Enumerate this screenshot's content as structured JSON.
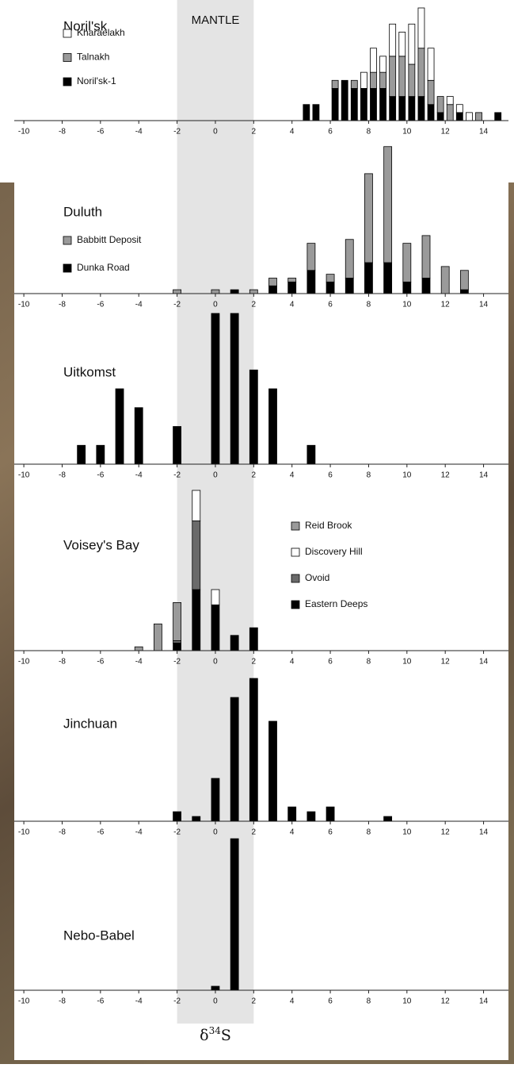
{
  "mantle": {
    "label": "MANTLE",
    "range": [
      -2,
      2
    ]
  },
  "x_axis_label": {
    "symbol": "δ",
    "superscript": "34",
    "element": "S"
  },
  "chart_data": [
    {
      "type": "bar",
      "title": "Noril'sk",
      "x": [
        4.75,
        5.25,
        6.25,
        6.75,
        7.25,
        7.75,
        8.25,
        8.75,
        9.25,
        9.75,
        10.25,
        10.75,
        11.25,
        11.75,
        12.25,
        12.75,
        13.25,
        13.75,
        14.75
      ],
      "series": [
        {
          "name": "Noril'sk-1",
          "color": "#000000",
          "values": [
            2,
            2,
            4,
            5,
            4,
            4,
            4,
            4,
            3,
            3,
            3,
            3,
            2,
            1,
            0,
            1,
            0,
            0,
            1
          ]
        },
        {
          "name": "Talnakh",
          "color": "#9a9a9a",
          "values": [
            0,
            0,
            1,
            0,
            1,
            0,
            2,
            2,
            5,
            5,
            4,
            6,
            3,
            2,
            2,
            0,
            0,
            1,
            0
          ]
        },
        {
          "name": "Kharaelakh",
          "color": "#ffffff",
          "values": [
            0,
            0,
            0,
            0,
            0,
            2,
            3,
            2,
            4,
            3,
            5,
            5,
            4,
            0,
            1,
            1,
            1,
            0,
            0
          ]
        }
      ],
      "xlim": [
        -10.5,
        15.3
      ],
      "xticks": [
        -10,
        -8,
        -6,
        -4,
        -2,
        0,
        2,
        4,
        6,
        8,
        10,
        12,
        14
      ],
      "ylim": [
        0,
        14
      ]
    },
    {
      "type": "bar",
      "title": "Duluth",
      "x": [
        -2,
        0,
        1,
        2,
        3,
        4,
        5,
        6,
        7,
        8,
        9,
        10,
        11,
        12,
        13
      ],
      "series": [
        {
          "name": "Dunka Road",
          "color": "#000000",
          "values": [
            0,
            0,
            1,
            0,
            2,
            3,
            6,
            3,
            4,
            8,
            8,
            3,
            4,
            0,
            1
          ]
        },
        {
          "name": "Babbitt Deposit",
          "color": "#9a9a9a",
          "values": [
            1,
            1,
            0,
            1,
            2,
            1,
            7,
            2,
            10,
            23,
            30,
            10,
            11,
            7,
            5
          ]
        }
      ],
      "xlim": [
        -10.5,
        15.3
      ],
      "xticks": [
        -10,
        -8,
        -6,
        -4,
        -2,
        0,
        2,
        4,
        6,
        8,
        10,
        12,
        14
      ],
      "ylim": [
        0,
        40
      ]
    },
    {
      "type": "bar",
      "title": "Uitkomst",
      "x": [
        -7,
        -6,
        -5,
        -4,
        -2,
        0,
        1,
        2,
        3,
        5
      ],
      "values": [
        1,
        1,
        4,
        3,
        2,
        8,
        8,
        5,
        4,
        1
      ],
      "color": "#000000",
      "xlim": [
        -10.5,
        15.3
      ],
      "xticks": [
        -10,
        -8,
        -6,
        -4,
        -2,
        0,
        2,
        4,
        6,
        8,
        10,
        12,
        14
      ],
      "ylim": [
        0,
        8
      ]
    },
    {
      "type": "bar",
      "title": "Voisey's Bay",
      "x": [
        -4,
        -3,
        -2,
        -1,
        0,
        1,
        2
      ],
      "series": [
        {
          "name": "Eastern Deeps",
          "color": "#000000",
          "values": [
            0,
            0,
            1,
            8,
            6,
            2,
            3
          ]
        },
        {
          "name": "Ovoid",
          "color": "#6a6a6a",
          "values": [
            0,
            0,
            0.3,
            9,
            0,
            0,
            0
          ]
        },
        {
          "name": "Discovery Hill",
          "color": "#ffffff",
          "values": [
            0,
            0,
            0,
            4,
            2,
            0,
            0
          ]
        },
        {
          "name": "Reid Brook",
          "color": "#9a9a9a",
          "values": [
            0.5,
            3.5,
            5,
            0,
            0,
            0,
            0
          ]
        }
      ],
      "xlim": [
        -10.5,
        15.3
      ],
      "xticks": [
        -10,
        -8,
        -6,
        -4,
        -2,
        0,
        2,
        4,
        6,
        8,
        10,
        12,
        14
      ],
      "ylim": [
        0,
        21
      ]
    },
    {
      "type": "bar",
      "title": "Jinchuan",
      "x": [
        -2,
        -1,
        0,
        1,
        2,
        3,
        4,
        5,
        6,
        9
      ],
      "values": [
        2,
        1,
        9,
        26,
        30,
        21,
        3,
        2,
        3,
        1
      ],
      "color": "#000000",
      "xlim": [
        -10.5,
        15.3
      ],
      "xticks": [
        -10,
        -8,
        -6,
        -4,
        -2,
        0,
        2,
        4,
        6,
        8,
        10,
        12,
        14
      ],
      "ylim": [
        0,
        31
      ]
    },
    {
      "type": "bar",
      "title": "Nebo-Babel",
      "x": [
        0,
        1
      ],
      "values": [
        1,
        38
      ],
      "color": "#000000",
      "xlim": [
        -10.5,
        15.3
      ],
      "xticks": [
        -10,
        -8,
        -6,
        -4,
        -2,
        0,
        2,
        4,
        6,
        8,
        10,
        12,
        14
      ],
      "ylim": [
        0,
        38
      ]
    }
  ]
}
